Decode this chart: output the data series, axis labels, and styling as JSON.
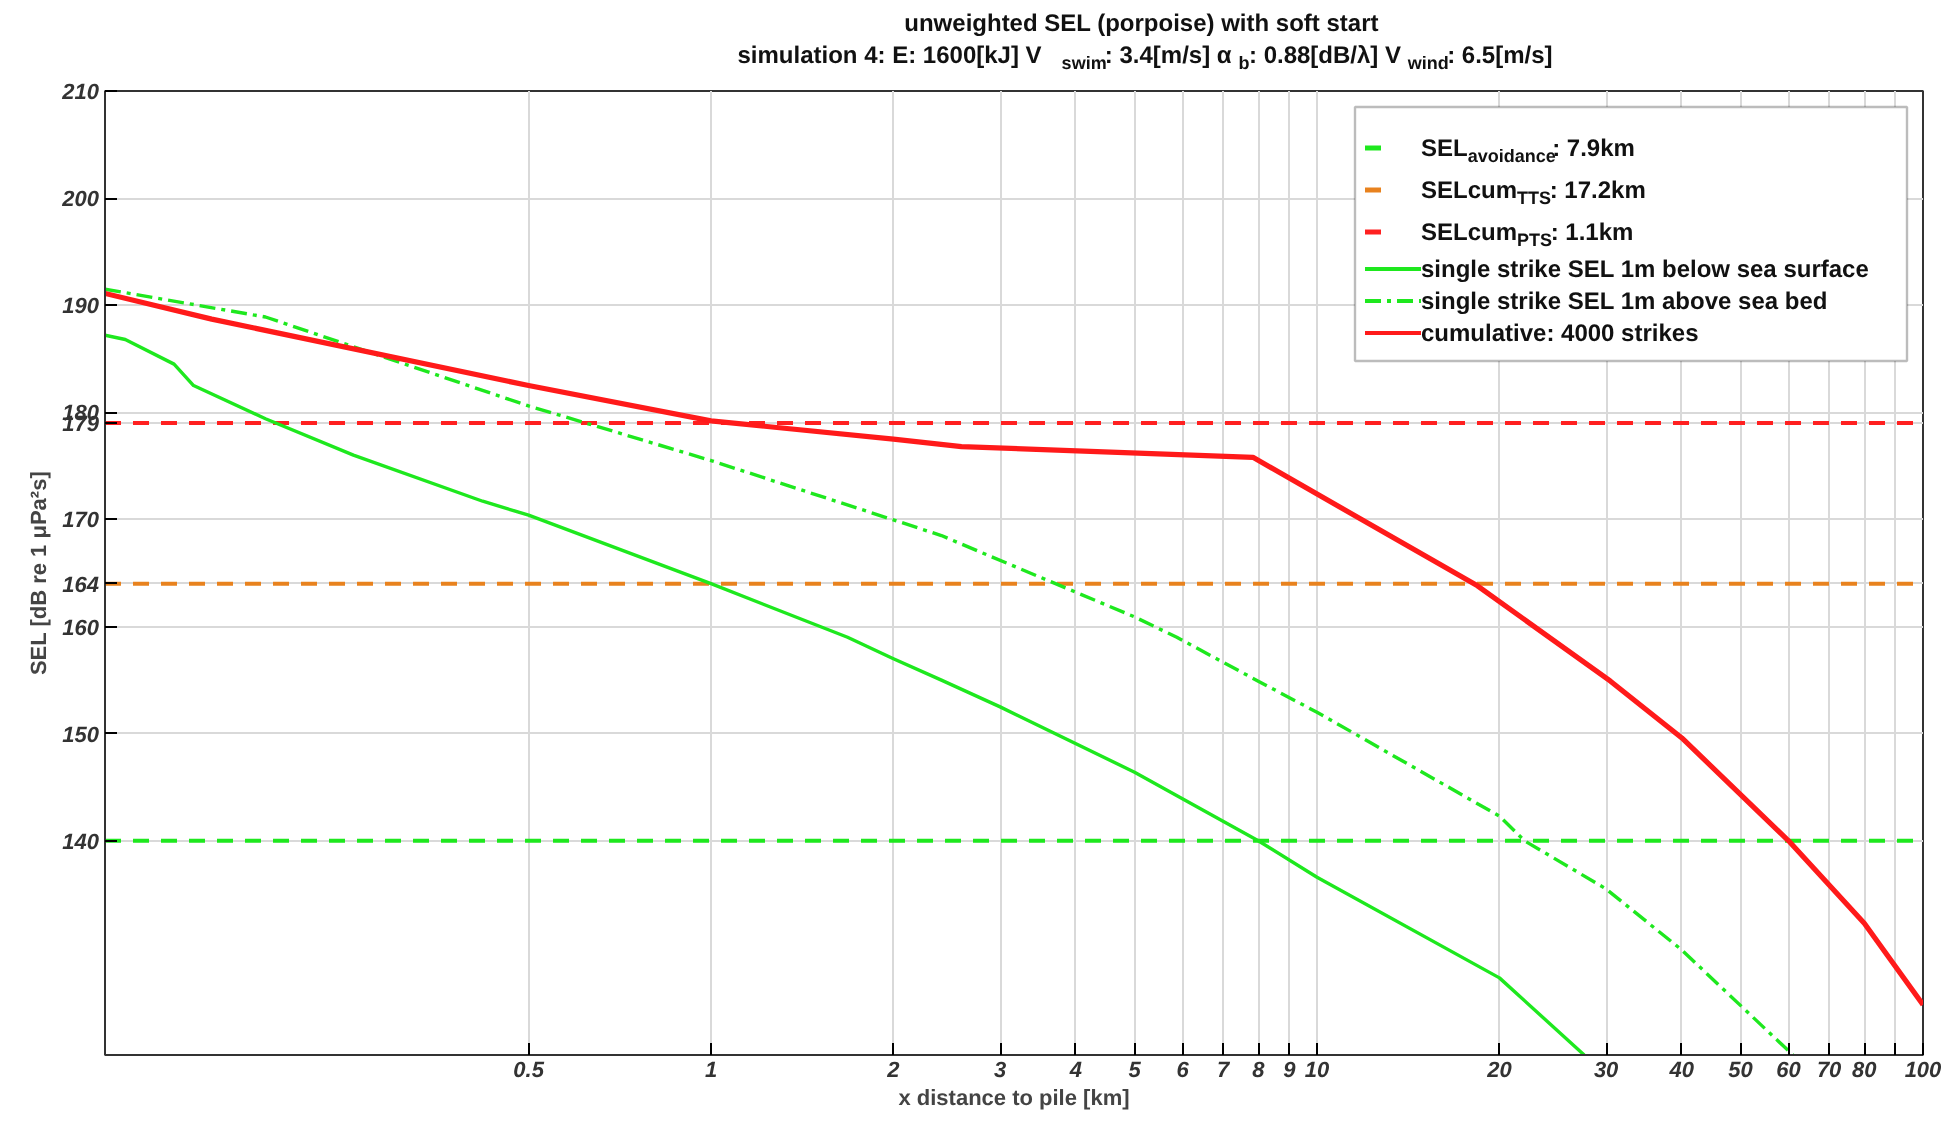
{
  "chart_data": {
    "type": "line",
    "title": "unweighted SEL (porpoise)  with soft start",
    "subtitle": "simulation 4:   E: 1600[kJ]  V$_{swim}$: 3.4[m/s]  α$_{b}$: 0.88[dB/λ]  V$_{wind}$: 6.5[m/s]",
    "xlabel": "x distance to pile [km]",
    "ylabel": "SEL [dB re 1 μPa²s]",
    "log": "x",
    "xlim": [
      0.1,
      100
    ],
    "ylim": [
      120,
      210
    ],
    "xticks": [
      0.5,
      1,
      2,
      3,
      4,
      5,
      6,
      7,
      8,
      9,
      10,
      20,
      30,
      40,
      50,
      60,
      70,
      80,
      {
        "value": 90,
        "label": null
      },
      100
    ],
    "yticks": [
      140,
      150,
      160,
      164,
      170,
      179,
      180,
      190,
      200,
      210
    ],
    "grid": true,
    "legend": "top right",
    "series": [
      {
        "name": "SEL$_{avoidance}$: 7.9km",
        "color": "#1ee81e",
        "line_style": "dashed",
        "x": [
          0.1,
          100
        ],
        "values": [
          140,
          140
        ]
      },
      {
        "name": "SELcum$_{TTS}$: 17.2km",
        "color": "#e8821e",
        "line_style": "dashed",
        "x": [
          0.1,
          100
        ],
        "values": [
          164,
          164
        ]
      },
      {
        "name": "SELcum$_{PTS}$: 1.1km",
        "color": "#ff2020",
        "line_style": "dashed",
        "x": [
          0.1,
          100
        ],
        "values": [
          179,
          179
        ]
      },
      {
        "name": "single strike SEL 1m below sea surface",
        "color": "#1ee81e",
        "line_style": "solid",
        "x": [
          0.1,
          0.108,
          0.13,
          0.14,
          0.184,
          0.257,
          0.42,
          0.5,
          1,
          1.68,
          2,
          2.4,
          3,
          5,
          8,
          10,
          20,
          27.6
        ],
        "values": [
          187.2,
          186.8,
          184.5,
          182.5,
          179.4,
          176,
          171.7,
          170.4,
          164,
          159,
          157,
          155,
          152.5,
          146.4,
          140,
          136.6,
          127.2,
          120
        ]
      },
      {
        "name": "single strike SEL 1m above sea bed",
        "color": "#1ee81e",
        "line_style": "dashdot",
        "x": [
          0.1,
          0.184,
          0.5,
          1,
          2.4,
          2.59,
          5,
          5.87,
          8,
          10,
          20,
          22,
          30,
          40,
          61
        ],
        "values": [
          191.5,
          188.9,
          180.6,
          175.5,
          168.5,
          167.7,
          160.9,
          159,
          154.9,
          152,
          142.3,
          140,
          135.5,
          129.8,
          120
        ]
      },
      {
        "name": "cumulative: 4000 strikes",
        "color": "#ff1a1a",
        "line_style": "solid",
        "x": [
          0.1,
          0.15,
          0.5,
          1,
          2,
          2.59,
          7.84,
          18.4,
          30.5,
          40,
          60,
          80,
          100
        ],
        "values": [
          191.1,
          188.7,
          182.5,
          179.2,
          177.5,
          176.8,
          175.8,
          163.8,
          154.9,
          149.6,
          140,
          132.3,
          124.7
        ]
      }
    ]
  }
}
